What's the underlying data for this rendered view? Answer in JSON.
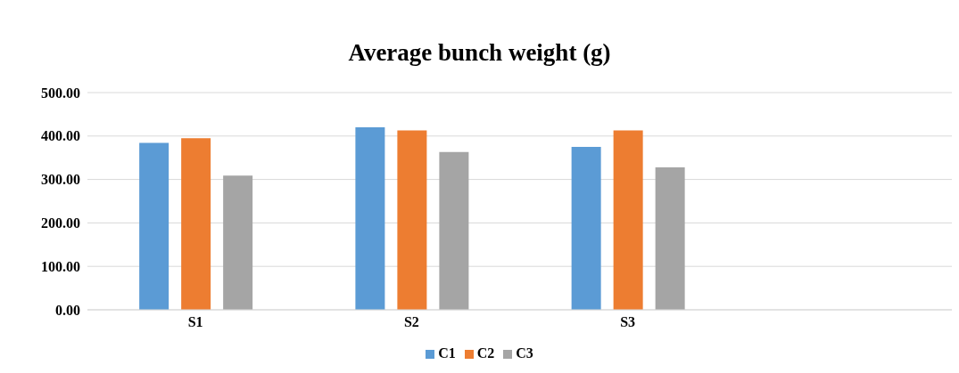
{
  "chart_data": {
    "type": "bar",
    "title": "Average bunch weight (g)",
    "categories": [
      "S1",
      "S2",
      "S3",
      null
    ],
    "series": [
      {
        "name": "C1",
        "color": "#5b9bd5",
        "values": [
          384,
          420,
          375,
          null
        ]
      },
      {
        "name": "C2",
        "color": "#ed7d31",
        "values": [
          395,
          413,
          413,
          null
        ]
      },
      {
        "name": "C3",
        "color": "#a5a5a5",
        "values": [
          309,
          363,
          328,
          null
        ]
      }
    ],
    "ylim": [
      0,
      500
    ],
    "yticks": [
      {
        "value": 0,
        "label": "0.00"
      },
      {
        "value": 100,
        "label": "100.00"
      },
      {
        "value": 200,
        "label": "200.00"
      },
      {
        "value": 300,
        "label": "300.00"
      },
      {
        "value": 400,
        "label": "400.00"
      },
      {
        "value": 500,
        "label": "500.00"
      }
    ],
    "grid": "y",
    "legend": "bottom"
  }
}
